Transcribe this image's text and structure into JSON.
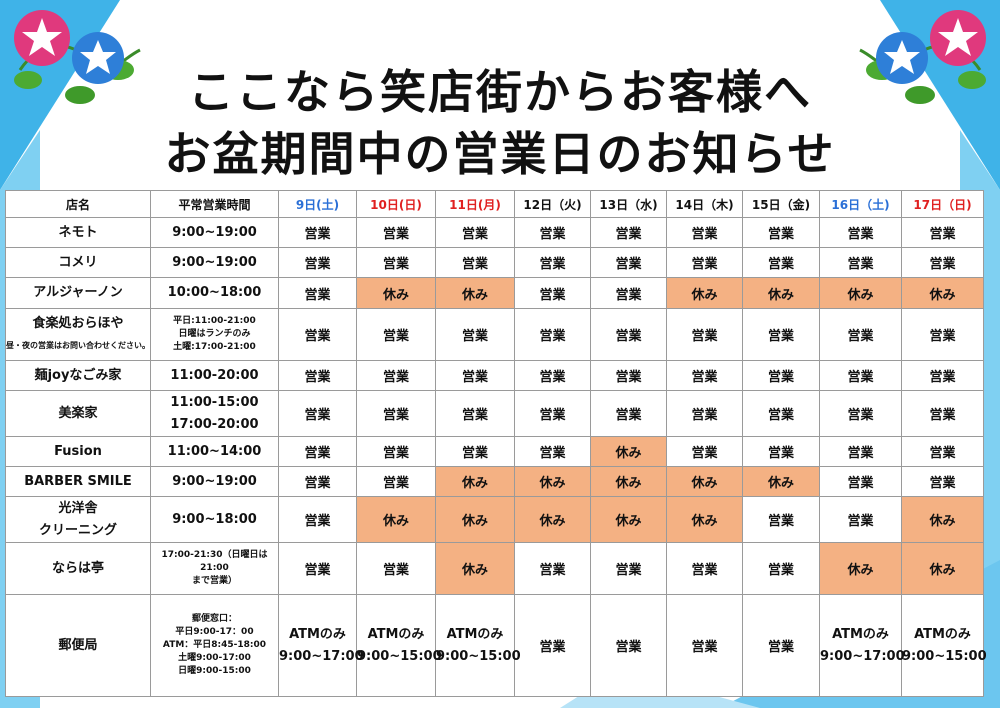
{
  "title": {
    "line1": "ここなら笑店街からお客様へ",
    "line2": "お盆期間中の営業日のお知らせ"
  },
  "colors": {
    "closed": "#f4b183",
    "saturday": "#2a6fd6",
    "sunday": "#e02020",
    "background_accent": "#3fb3e8"
  },
  "table": {
    "header": {
      "name": "店名",
      "hours": "平常営業時間",
      "days": [
        "9日(土)",
        "10日(日)",
        "11日(月)",
        "12日（火)",
        "13日（水)",
        "14日（木)",
        "15日（金)",
        "16日（土)",
        "17日（日)"
      ]
    },
    "rows": [
      {
        "name": [
          "ネモト"
        ],
        "hours": [
          "9:00~19:00"
        ],
        "days": [
          "営業",
          "営業",
          "営業",
          "営業",
          "営業",
          "営業",
          "営業",
          "営業",
          "営業"
        ]
      },
      {
        "name": [
          "コメリ"
        ],
        "hours": [
          "9:00~19:00"
        ],
        "days": [
          "営業",
          "営業",
          "営業",
          "営業",
          "営業",
          "営業",
          "営業",
          "営業",
          "営業"
        ]
      },
      {
        "name": [
          "アルジャーノン"
        ],
        "hours": [
          "10:00~18:00"
        ],
        "days": [
          "営業",
          "休み",
          "休み",
          "営業",
          "営業",
          "休み",
          "休み",
          "休み",
          "休み"
        ]
      },
      {
        "name": [
          "食楽処おらほや"
        ],
        "note": "昼・夜の営業はお問い合わせください。",
        "hours": [
          "平日:11:00-21:00",
          "日曜はランチのみ",
          "土曜:17:00-21:00"
        ],
        "days": [
          "営業",
          "営業",
          "営業",
          "営業",
          "営業",
          "営業",
          "営業",
          "営業",
          "営業"
        ]
      },
      {
        "name": [
          "麺joyなごみ家"
        ],
        "hours": [
          "11:00-20:00"
        ],
        "days": [
          "営業",
          "営業",
          "営業",
          "営業",
          "営業",
          "営業",
          "営業",
          "営業",
          "営業"
        ]
      },
      {
        "name": [
          "美楽家"
        ],
        "hours": [
          "11:00-15:00",
          "17:00-20:00"
        ],
        "days": [
          "営業",
          "営業",
          "営業",
          "営業",
          "営業",
          "営業",
          "営業",
          "営業",
          "営業"
        ]
      },
      {
        "name": [
          "Fusion"
        ],
        "hours": [
          "11:00~14:00"
        ],
        "days": [
          "営業",
          "営業",
          "営業",
          "営業",
          "休み",
          "営業",
          "営業",
          "営業",
          "営業"
        ]
      },
      {
        "name": [
          "BARBER SMILE"
        ],
        "hours": [
          "9:00~19:00"
        ],
        "days": [
          "営業",
          "営業",
          "休み",
          "休み",
          "休み",
          "休み",
          "休み",
          "営業",
          "営業"
        ]
      },
      {
        "name": [
          "光洋舎",
          "クリーニング"
        ],
        "hours": [
          "9:00~18:00"
        ],
        "days": [
          "営業",
          "休み",
          "休み",
          "休み",
          "休み",
          "休み",
          "営業",
          "営業",
          "休み"
        ]
      },
      {
        "name": [
          "ならは亭"
        ],
        "hours": [
          "17:00-21:30（日曜日は21:00",
          "まで営業）"
        ],
        "days": [
          "営業",
          "営業",
          "休み",
          "営業",
          "営業",
          "営業",
          "営業",
          "休み",
          "休み"
        ]
      },
      {
        "name": [
          "郵便局"
        ],
        "hours": [
          "郵便窓口：",
          "平日9:00-17：00",
          "ATM：平日8:45-18:00",
          "土曜9:00-17:00",
          "日曜9:00-15:00"
        ],
        "days": [
          "ATMのみ|9:00~17:00",
          "ATMのみ|9:00~15:00",
          "ATMのみ|9:00~15:00",
          "営業",
          "営業",
          "営業",
          "営業",
          "ATMのみ|9:00~17:00",
          "ATMのみ|9:00~15:00"
        ]
      }
    ]
  },
  "icons": {
    "flower_left": "morning-glory-icon",
    "flower_right": "morning-glory-icon"
  }
}
